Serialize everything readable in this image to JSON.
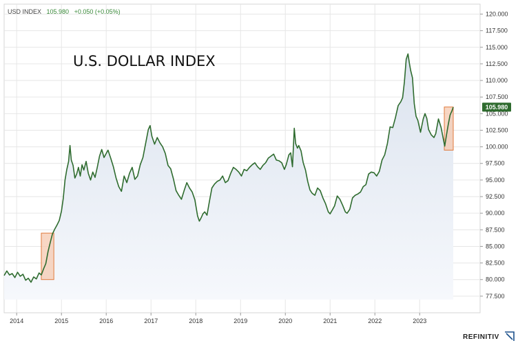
{
  "header": {
    "symbol": "USD INDEX",
    "last": "105.980",
    "change": "+0.050 (+0.05%)"
  },
  "brand": {
    "name": "REFINITIV"
  },
  "colors": {
    "line": "#2e6b2e",
    "fill_top": "#dbe3ee",
    "fill_bottom": "#f6f8fc",
    "highlight_fill": "#f5c9b0",
    "highlight_stroke": "#e07a3c",
    "price_label_bg": "#2e6b2e",
    "grid": "#e6e6e6",
    "change_text": "#3a8a3a"
  },
  "chart_data": {
    "type": "area",
    "title": "U.S. DOLLAR INDEX",
    "xlabel": "",
    "ylabel": "",
    "x_range": [
      2013.72,
      2024.35
    ],
    "ylim": [
      75.0,
      121.5
    ],
    "grid": true,
    "y_ticks": [
      "77.500",
      "80.000",
      "82.500",
      "85.000",
      "87.500",
      "90.000",
      "92.500",
      "95.000",
      "97.500",
      "100.000",
      "102.500",
      "105.000",
      "107.500",
      "110.000",
      "112.500",
      "115.000",
      "117.500",
      "120.000"
    ],
    "x_ticks": [
      {
        "label": "2014",
        "x": 2014.0
      },
      {
        "label": "2015",
        "x": 2015.0
      },
      {
        "label": "2016",
        "x": 2016.0
      },
      {
        "label": "2017",
        "x": 2017.0
      },
      {
        "label": "2018",
        "x": 2018.0
      },
      {
        "label": "2019",
        "x": 2019.0
      },
      {
        "label": "2020",
        "x": 2020.0
      },
      {
        "label": "2021",
        "x": 2021.0
      },
      {
        "label": "2022",
        "x": 2022.0
      },
      {
        "label": "2023",
        "x": 2023.0
      }
    ],
    "last_value": 105.98,
    "last_value_label": "105.980",
    "highlights": [
      {
        "x_start": 2014.55,
        "x_end": 2014.83,
        "y_low": 80.0,
        "y_high": 87.0
      },
      {
        "x_start": 2023.55,
        "x_end": 2023.75,
        "y_low": 99.5,
        "y_high": 106.0
      }
    ],
    "series": [
      {
        "points": [
          [
            2013.72,
            80.6
          ],
          [
            2013.78,
            81.3
          ],
          [
            2013.84,
            80.7
          ],
          [
            2013.9,
            80.9
          ],
          [
            2013.96,
            80.3
          ],
          [
            2014.02,
            81.1
          ],
          [
            2014.08,
            80.5
          ],
          [
            2014.14,
            80.8
          ],
          [
            2014.2,
            79.9
          ],
          [
            2014.26,
            80.2
          ],
          [
            2014.32,
            79.6
          ],
          [
            2014.38,
            80.4
          ],
          [
            2014.44,
            80.1
          ],
          [
            2014.5,
            81.0
          ],
          [
            2014.55,
            80.7
          ],
          [
            2014.6,
            81.6
          ],
          [
            2014.65,
            82.4
          ],
          [
            2014.7,
            84.2
          ],
          [
            2014.75,
            85.6
          ],
          [
            2014.8,
            86.9
          ],
          [
            2014.85,
            87.6
          ],
          [
            2014.9,
            88.2
          ],
          [
            2014.95,
            88.9
          ],
          [
            2015.0,
            90.3
          ],
          [
            2015.04,
            92.2
          ],
          [
            2015.08,
            95.0
          ],
          [
            2015.12,
            96.6
          ],
          [
            2015.16,
            97.8
          ],
          [
            2015.19,
            100.2
          ],
          [
            2015.22,
            98.0
          ],
          [
            2015.26,
            97.2
          ],
          [
            2015.3,
            95.3
          ],
          [
            2015.34,
            95.9
          ],
          [
            2015.38,
            96.9
          ],
          [
            2015.42,
            95.6
          ],
          [
            2015.46,
            97.3
          ],
          [
            2015.5,
            96.5
          ],
          [
            2015.55,
            97.8
          ],
          [
            2015.6,
            96.0
          ],
          [
            2015.65,
            95.0
          ],
          [
            2015.7,
            96.2
          ],
          [
            2015.75,
            95.4
          ],
          [
            2015.8,
            96.9
          ],
          [
            2015.85,
            98.6
          ],
          [
            2015.9,
            99.6
          ],
          [
            2015.95,
            98.4
          ],
          [
            2016.0,
            99.0
          ],
          [
            2016.04,
            99.5
          ],
          [
            2016.1,
            98.3
          ],
          [
            2016.16,
            97.0
          ],
          [
            2016.22,
            95.3
          ],
          [
            2016.28,
            94.0
          ],
          [
            2016.34,
            93.3
          ],
          [
            2016.4,
            95.6
          ],
          [
            2016.46,
            94.6
          ],
          [
            2016.52,
            96.0
          ],
          [
            2016.58,
            96.9
          ],
          [
            2016.64,
            95.1
          ],
          [
            2016.7,
            95.6
          ],
          [
            2016.76,
            97.3
          ],
          [
            2016.82,
            98.4
          ],
          [
            2016.88,
            100.5
          ],
          [
            2016.94,
            102.6
          ],
          [
            2016.98,
            103.2
          ],
          [
            2017.02,
            101.6
          ],
          [
            2017.08,
            100.4
          ],
          [
            2017.14,
            101.4
          ],
          [
            2017.2,
            100.6
          ],
          [
            2017.26,
            100.0
          ],
          [
            2017.32,
            99.0
          ],
          [
            2017.38,
            97.2
          ],
          [
            2017.44,
            96.7
          ],
          [
            2017.5,
            95.2
          ],
          [
            2017.56,
            93.4
          ],
          [
            2017.62,
            92.7
          ],
          [
            2017.68,
            92.1
          ],
          [
            2017.74,
            93.4
          ],
          [
            2017.8,
            94.6
          ],
          [
            2017.86,
            93.8
          ],
          [
            2017.92,
            93.2
          ],
          [
            2017.98,
            92.0
          ],
          [
            2018.04,
            89.6
          ],
          [
            2018.08,
            88.8
          ],
          [
            2018.12,
            89.3
          ],
          [
            2018.16,
            89.9
          ],
          [
            2018.2,
            90.2
          ],
          [
            2018.25,
            89.7
          ],
          [
            2018.3,
            91.6
          ],
          [
            2018.36,
            93.8
          ],
          [
            2018.42,
            94.4
          ],
          [
            2018.48,
            94.8
          ],
          [
            2018.54,
            95.0
          ],
          [
            2018.6,
            95.6
          ],
          [
            2018.66,
            94.6
          ],
          [
            2018.72,
            94.9
          ],
          [
            2018.78,
            96.0
          ],
          [
            2018.84,
            96.9
          ],
          [
            2018.9,
            96.6
          ],
          [
            2018.96,
            96.2
          ],
          [
            2019.02,
            95.6
          ],
          [
            2019.08,
            96.6
          ],
          [
            2019.14,
            96.4
          ],
          [
            2019.2,
            96.9
          ],
          [
            2019.26,
            97.3
          ],
          [
            2019.32,
            97.6
          ],
          [
            2019.38,
            97.0
          ],
          [
            2019.44,
            96.6
          ],
          [
            2019.5,
            97.2
          ],
          [
            2019.56,
            97.6
          ],
          [
            2019.62,
            98.3
          ],
          [
            2019.68,
            98.6
          ],
          [
            2019.74,
            98.9
          ],
          [
            2019.8,
            98.0
          ],
          [
            2019.86,
            97.9
          ],
          [
            2019.92,
            97.6
          ],
          [
            2019.98,
            96.6
          ],
          [
            2020.02,
            97.3
          ],
          [
            2020.08,
            98.8
          ],
          [
            2020.12,
            99.1
          ],
          [
            2020.16,
            97.0
          ],
          [
            2020.2,
            102.8
          ],
          [
            2020.23,
            100.5
          ],
          [
            2020.27,
            99.8
          ],
          [
            2020.3,
            100.2
          ],
          [
            2020.35,
            99.4
          ],
          [
            2020.4,
            97.6
          ],
          [
            2020.45,
            96.5
          ],
          [
            2020.5,
            94.8
          ],
          [
            2020.55,
            93.5
          ],
          [
            2020.6,
            93.0
          ],
          [
            2020.66,
            92.7
          ],
          [
            2020.72,
            93.8
          ],
          [
            2020.78,
            93.4
          ],
          [
            2020.84,
            92.3
          ],
          [
            2020.9,
            91.4
          ],
          [
            2020.96,
            90.2
          ],
          [
            2021.0,
            89.9
          ],
          [
            2021.05,
            90.5
          ],
          [
            2021.1,
            91.1
          ],
          [
            2021.16,
            92.6
          ],
          [
            2021.22,
            92.1
          ],
          [
            2021.28,
            91.2
          ],
          [
            2021.34,
            90.2
          ],
          [
            2021.38,
            90.0
          ],
          [
            2021.44,
            90.6
          ],
          [
            2021.5,
            92.3
          ],
          [
            2021.56,
            92.7
          ],
          [
            2021.62,
            92.9
          ],
          [
            2021.68,
            93.2
          ],
          [
            2021.74,
            94.0
          ],
          [
            2021.8,
            94.3
          ],
          [
            2021.86,
            95.9
          ],
          [
            2021.92,
            96.2
          ],
          [
            2021.98,
            96.1
          ],
          [
            2022.04,
            95.6
          ],
          [
            2022.1,
            96.3
          ],
          [
            2022.16,
            98.0
          ],
          [
            2022.22,
            98.8
          ],
          [
            2022.28,
            100.5
          ],
          [
            2022.34,
            103.0
          ],
          [
            2022.4,
            102.9
          ],
          [
            2022.46,
            104.4
          ],
          [
            2022.52,
            106.2
          ],
          [
            2022.58,
            106.8
          ],
          [
            2022.62,
            107.4
          ],
          [
            2022.66,
            109.8
          ],
          [
            2022.7,
            113.2
          ],
          [
            2022.74,
            114.0
          ],
          [
            2022.77,
            112.6
          ],
          [
            2022.8,
            111.5
          ],
          [
            2022.84,
            110.4
          ],
          [
            2022.88,
            106.5
          ],
          [
            2022.92,
            104.6
          ],
          [
            2022.96,
            104.0
          ],
          [
            2023.02,
            102.2
          ],
          [
            2023.08,
            104.2
          ],
          [
            2023.12,
            105.0
          ],
          [
            2023.16,
            104.3
          ],
          [
            2023.2,
            102.6
          ],
          [
            2023.26,
            101.8
          ],
          [
            2023.32,
            101.4
          ],
          [
            2023.36,
            102.0
          ],
          [
            2023.42,
            104.2
          ],
          [
            2023.48,
            102.9
          ],
          [
            2023.52,
            101.5
          ],
          [
            2023.56,
            100.1
          ],
          [
            2023.6,
            101.8
          ],
          [
            2023.64,
            103.4
          ],
          [
            2023.68,
            104.8
          ],
          [
            2023.72,
            105.4
          ],
          [
            2023.75,
            105.98
          ]
        ]
      }
    ]
  }
}
